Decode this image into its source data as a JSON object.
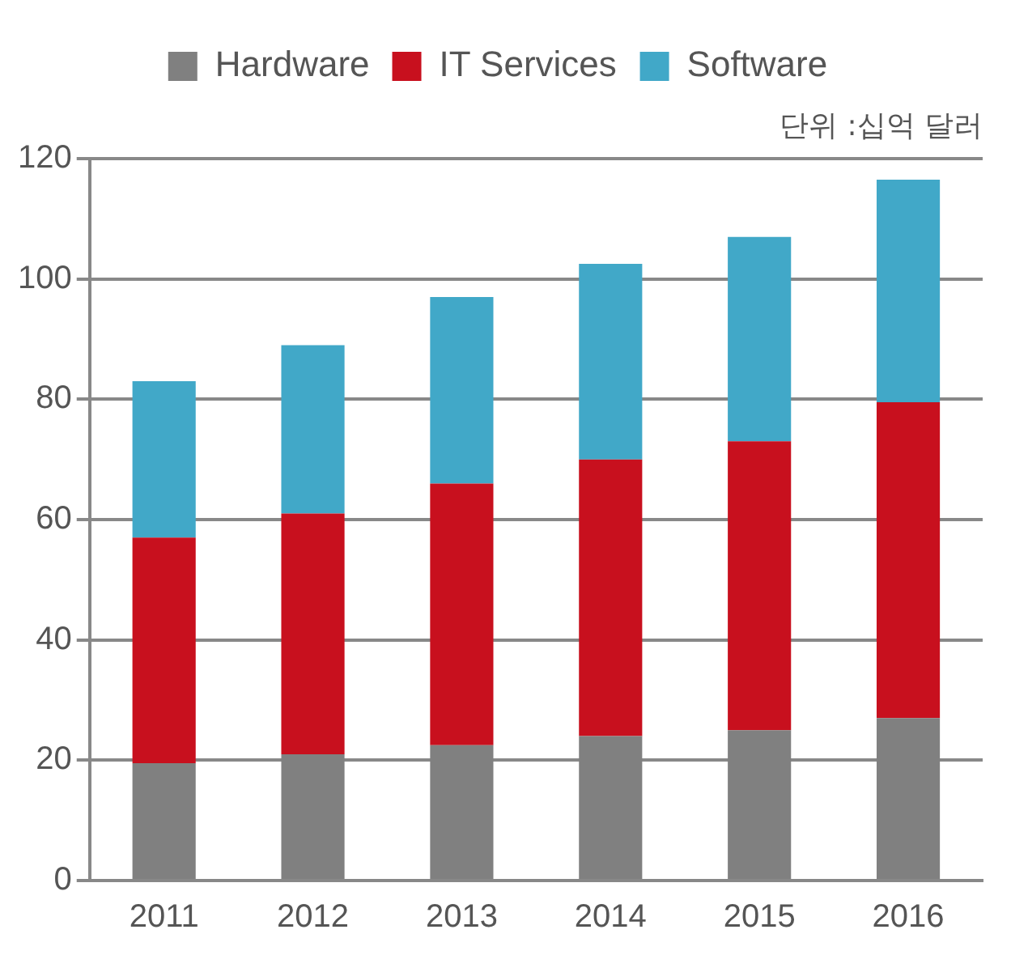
{
  "chart_data": {
    "type": "bar",
    "stacked": true,
    "categories": [
      "2011",
      "2012",
      "2013",
      "2014",
      "2015",
      "2016"
    ],
    "series": [
      {
        "name": "Hardware",
        "color": "#808080",
        "values": [
          19.5,
          21,
          22.5,
          24,
          25,
          27
        ]
      },
      {
        "name": "IT Services",
        "color": "#c8101e",
        "values": [
          37.5,
          40,
          43.5,
          46,
          48,
          52.5
        ]
      },
      {
        "name": "Software",
        "color": "#41a8c8",
        "values": [
          26,
          28,
          31,
          32.5,
          34,
          37
        ]
      }
    ],
    "ylim": [
      0,
      120
    ],
    "yticks": [
      0,
      20,
      40,
      60,
      80,
      100,
      120
    ],
    "grid": "y",
    "legend": "top",
    "annotations": [
      "단위 :십억 달러"
    ]
  }
}
